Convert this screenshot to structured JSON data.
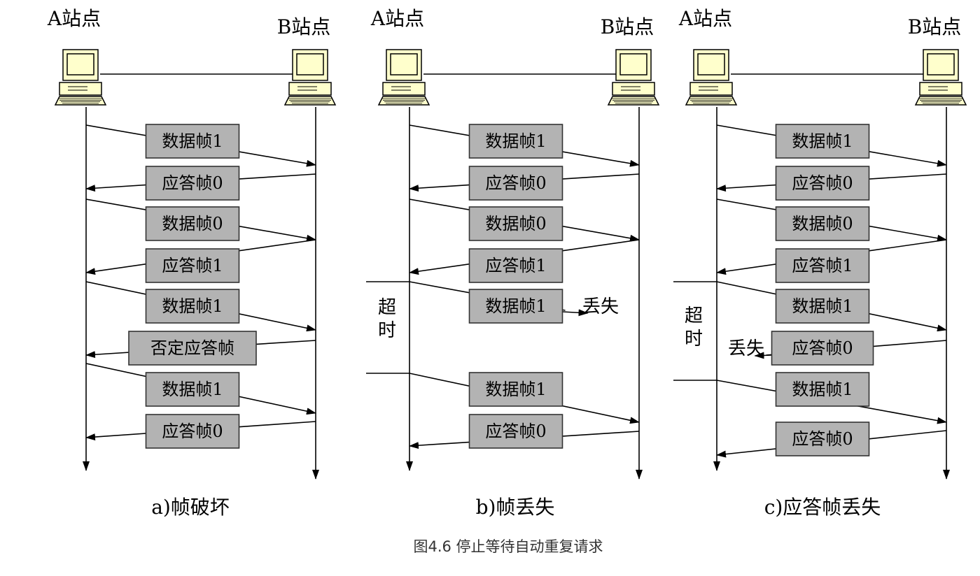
{
  "colors": {
    "frame_fill": "#b3b3b3",
    "frame_border": "#333333",
    "monitor_screen": "#ffffcc",
    "monitor_body": "#ffffcc",
    "line": "#000000"
  },
  "caption": "图4.6 停止等待自动重复请求",
  "panels": [
    {
      "id": "a",
      "station_a": "A站点",
      "station_b": "B站点",
      "subtitle": "a)帧破坏",
      "frames": [
        {
          "label": "数据帧1",
          "dir": "A→B"
        },
        {
          "label": "应答帧0",
          "dir": "B→A"
        },
        {
          "label": "数据帧0",
          "dir": "A→B"
        },
        {
          "label": "应答帧1",
          "dir": "B→A"
        },
        {
          "label": "数据帧1",
          "dir": "A→B"
        },
        {
          "label": "否定应答帧",
          "dir": "B→A"
        },
        {
          "label": "数据帧1",
          "dir": "A→B"
        },
        {
          "label": "应答帧0",
          "dir": "B→A"
        }
      ]
    },
    {
      "id": "b",
      "station_a": "A站点",
      "station_b": "B站点",
      "subtitle": "b)帧丢失",
      "timeout_label": [
        "超",
        "时"
      ],
      "lost_label": "丢失",
      "frames": [
        {
          "label": "数据帧1",
          "dir": "A→B"
        },
        {
          "label": "应答帧0",
          "dir": "B→A"
        },
        {
          "label": "数据帧0",
          "dir": "A→B"
        },
        {
          "label": "应答帧1",
          "dir": "B→A"
        },
        {
          "label": "数据帧1",
          "dir": "A→B",
          "lost": true
        },
        {
          "label": "数据帧1",
          "dir": "A→B"
        },
        {
          "label": "应答帧0",
          "dir": "B→A"
        }
      ]
    },
    {
      "id": "c",
      "station_a": "A站点",
      "station_b": "B站点",
      "subtitle": "c)应答帧丢失",
      "timeout_label": [
        "超",
        "时"
      ],
      "lost_label": "丢失",
      "frames": [
        {
          "label": "数据帧1",
          "dir": "A→B"
        },
        {
          "label": "应答帧0",
          "dir": "B→A"
        },
        {
          "label": "数据帧0",
          "dir": "A→B"
        },
        {
          "label": "应答帧1",
          "dir": "B→A"
        },
        {
          "label": "数据帧1",
          "dir": "A→B"
        },
        {
          "label": "应答帧0",
          "dir": "B→A",
          "lost": true
        },
        {
          "label": "数据帧1",
          "dir": "A→B"
        },
        {
          "label": "应答帧0",
          "dir": "B→A"
        }
      ]
    }
  ]
}
